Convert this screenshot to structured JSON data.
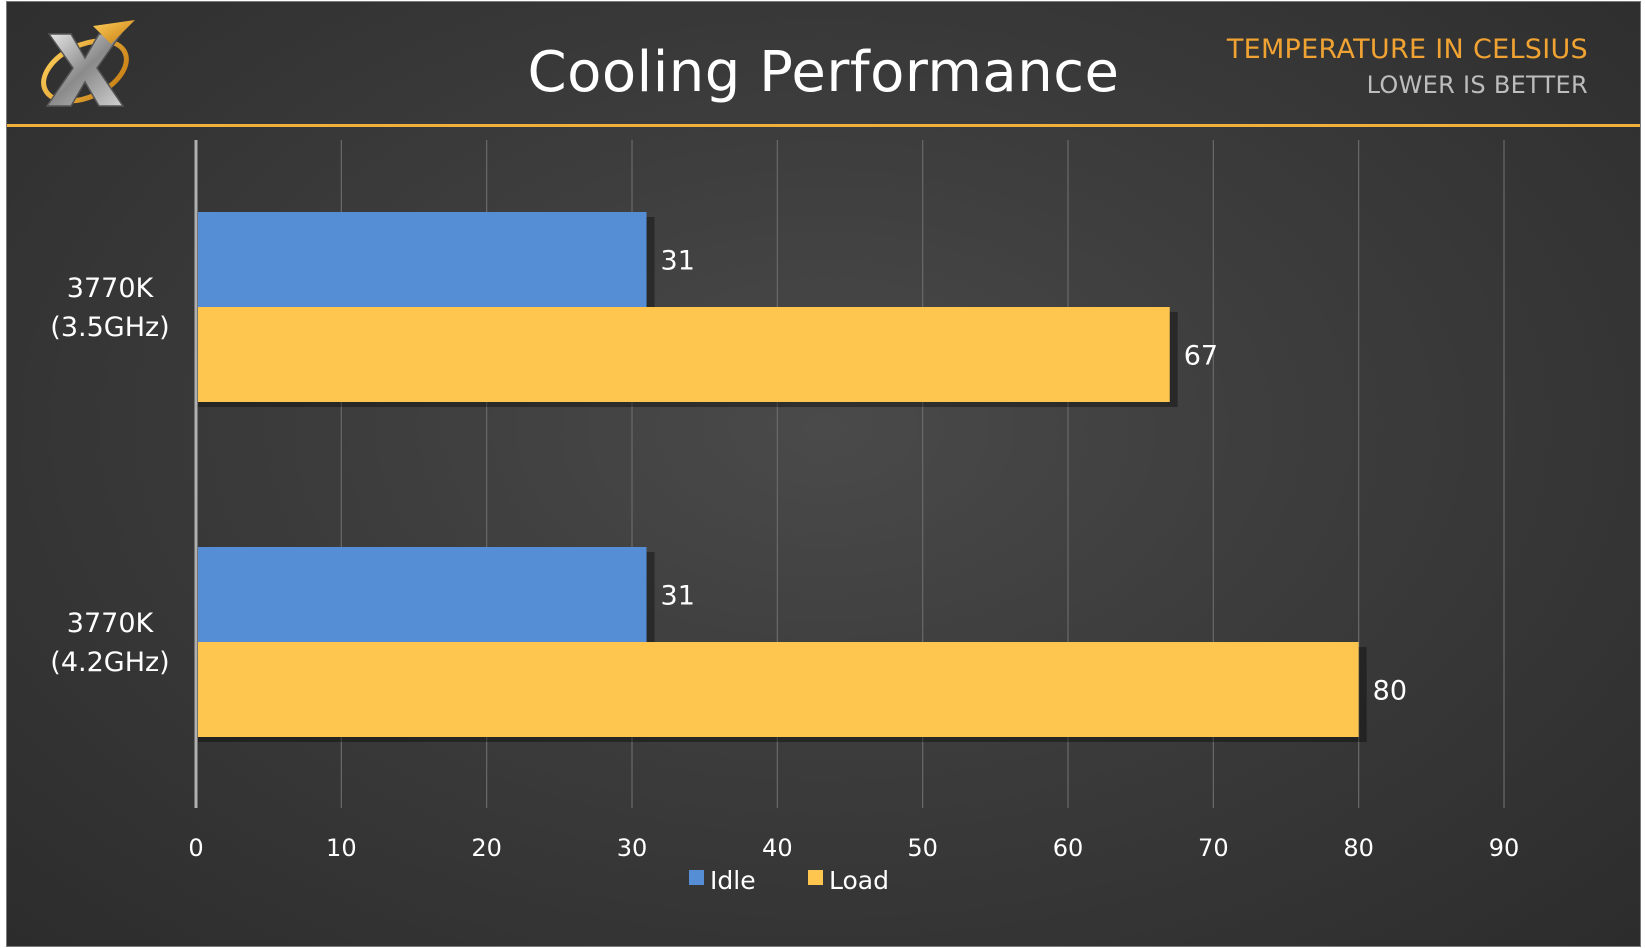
{
  "header": {
    "title": "Cooling Performance",
    "subtitle_primary": "TEMPERATURE IN CELSIUS",
    "subtitle_secondary": "LOWER IS BETTER",
    "logo_icon": "x-logo-icon"
  },
  "colors": {
    "idle": "#558ed5",
    "load": "#fec54f",
    "accent": "#f0a332",
    "rule": "#f0b13a"
  },
  "chart_data": {
    "type": "bar",
    "orientation": "horizontal",
    "title": "Cooling Performance",
    "categories": [
      "3770K (3.5GHz)",
      "3770K (4.2GHz)"
    ],
    "category_lines": [
      [
        "3770K",
        "(3.5GHz)"
      ],
      [
        "3770K",
        "(4.2GHz)"
      ]
    ],
    "series": [
      {
        "name": "Idle",
        "values": [
          31,
          31
        ],
        "color": "#558ed5"
      },
      {
        "name": "Load",
        "values": [
          67,
          80
        ],
        "color": "#fec54f"
      }
    ],
    "xlim": [
      0,
      90
    ],
    "xticks": [
      0,
      10,
      20,
      30,
      40,
      50,
      60,
      70,
      80,
      90
    ],
    "grid": true,
    "legend": "bottom",
    "data_labels": true
  }
}
